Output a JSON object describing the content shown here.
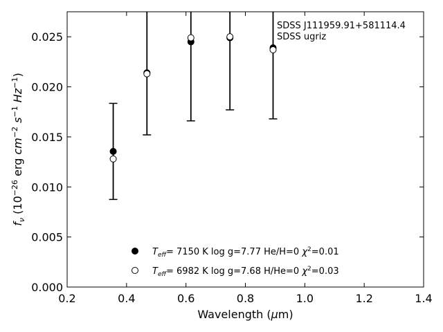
{
  "chart_data": {
    "type": "scatter",
    "xlabel": "Wavelength (μm)",
    "ylabel": "fν (10⁻²⁶ erg cm⁻² s⁻¹ Hz⁻¹)",
    "xlim": [
      0.2,
      1.4
    ],
    "ylim": [
      0.0,
      0.0275
    ],
    "x_ticks": [
      0.2,
      0.4,
      0.6,
      0.8,
      1.0,
      1.2,
      1.4
    ],
    "y_ticks": [
      0.0,
      0.005,
      0.01,
      0.015,
      0.02,
      0.025
    ],
    "x_tick_labels": [
      "0.2",
      "0.4",
      "0.6",
      "0.8",
      "1.0",
      "1.2",
      "1.4"
    ],
    "y_tick_labels": [
      "0.000",
      "0.005",
      "0.010",
      "0.015",
      "0.020",
      "0.025"
    ],
    "grid": false,
    "annotations": [
      "SDSS J111959.91+581114.4",
      "SDSS ugriz"
    ],
    "observed": {
      "x": [
        0.3551,
        0.4686,
        0.6166,
        0.748,
        0.8932
      ],
      "y": [
        0.01355,
        0.0214,
        0.0245,
        0.0249,
        0.0239
      ],
      "yerr": [
        0.0048,
        0.0062,
        0.0079,
        0.0072,
        0.0071
      ]
    },
    "series": [
      {
        "name": "Teff= 7150 K log g=7.77 He/H=0 χ²=0.01",
        "marker": "filled-circle",
        "x": [
          0.3551,
          0.4686,
          0.6166,
          0.748,
          0.8932
        ],
        "y": [
          0.01355,
          0.0214,
          0.0245,
          0.0249,
          0.0239
        ]
      },
      {
        "name": "Teff= 6982 K log g=7.68 H/He=0 χ²=0.03",
        "marker": "open-circle",
        "x": [
          0.3551,
          0.4686,
          0.6166,
          0.748,
          0.8932
        ],
        "y": [
          0.0128,
          0.0213,
          0.0249,
          0.025,
          0.0237
        ]
      }
    ],
    "legend": {
      "placement": "lower-center",
      "entries": [
        {
          "teff_value": "7150 K",
          "logg": "log g=7.77",
          "comp": "He/H=0",
          "chi_value": "=0.01"
        },
        {
          "teff_value": "6982 K",
          "logg": "log g=7.68",
          "comp": "H/He=0",
          "chi_value": "=0.03"
        }
      ]
    }
  }
}
